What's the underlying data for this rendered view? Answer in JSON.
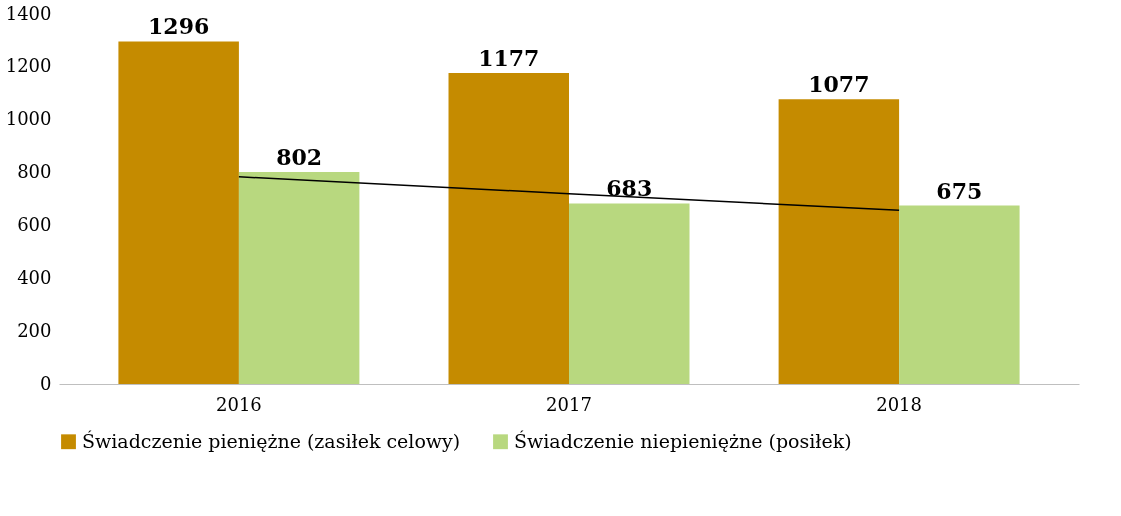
{
  "chart_data": {
    "type": "bar",
    "categories": [
      "2016",
      "2017",
      "2018"
    ],
    "series": [
      {
        "name": "Świadczenie pieniężne (zasiłek celowy)",
        "color": "#c58b00",
        "values": [
          1296,
          1177,
          1077
        ],
        "value_labels": [
          "1296",
          "1177",
          "1077"
        ]
      },
      {
        "name": "Świadczenie niepieniężne (posiłek)",
        "color": "#b8d87f",
        "values": [
          802,
          683,
          675
        ],
        "value_labels": [
          "802",
          "683",
          "675"
        ]
      },
      {
        "type": "line",
        "color": "#000000",
        "values": [
          784,
          720,
          657
        ]
      }
    ],
    "ylim": [
      0,
      1400
    ],
    "yticks": [
      0,
      200,
      400,
      600,
      800,
      1000,
      1200,
      1400
    ],
    "legend": "bottom"
  }
}
